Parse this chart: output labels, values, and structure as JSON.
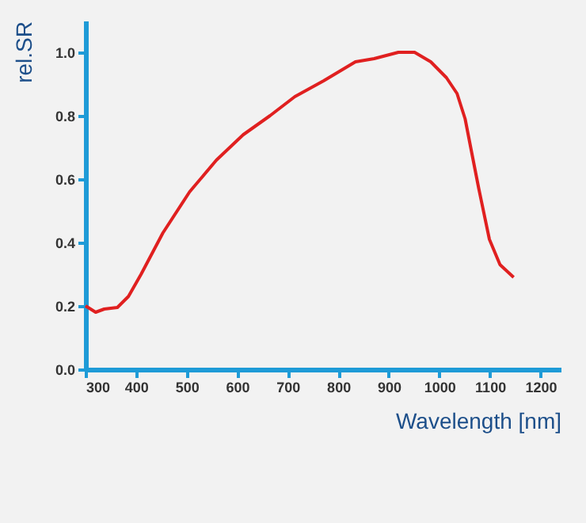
{
  "chart_data": {
    "type": "line",
    "xlabel": "Wavelength [nm]",
    "ylabel": "rel.SR",
    "x": [
      300,
      320,
      337,
      363,
      385,
      410,
      453,
      506,
      559,
      612,
      665,
      714,
      771,
      834,
      871,
      919,
      951,
      983,
      1014,
      1035,
      1051,
      1062,
      1078,
      1099,
      1120,
      1147
    ],
    "series": [
      {
        "color": "#e02020",
        "values": [
          0.2,
          0.18,
          0.19,
          0.195,
          0.23,
          0.3,
          0.43,
          0.56,
          0.66,
          0.74,
          0.8,
          0.86,
          0.91,
          0.97,
          0.98,
          1.0,
          1.0,
          0.97,
          0.92,
          0.87,
          0.79,
          0.7,
          0.57,
          0.41,
          0.33,
          0.29
        ]
      }
    ],
    "xlim": [
      300,
      1240
    ],
    "ylim": [
      0,
      1.1
    ],
    "xticks": [
      300,
      400,
      500,
      600,
      700,
      800,
      900,
      1000,
      1100,
      1200
    ],
    "yticks": [
      {
        "value": 0,
        "label": "0.0"
      },
      {
        "value": 0.2,
        "label": "0.2"
      },
      {
        "value": 0.4,
        "label": "0.4"
      },
      {
        "value": 0.6,
        "label": "0.6"
      },
      {
        "value": 0.8,
        "label": "0.8"
      },
      {
        "value": 1,
        "label": "1.0"
      }
    ],
    "grid": false,
    "legend": false,
    "marker": "none",
    "line_style": "solid"
  }
}
